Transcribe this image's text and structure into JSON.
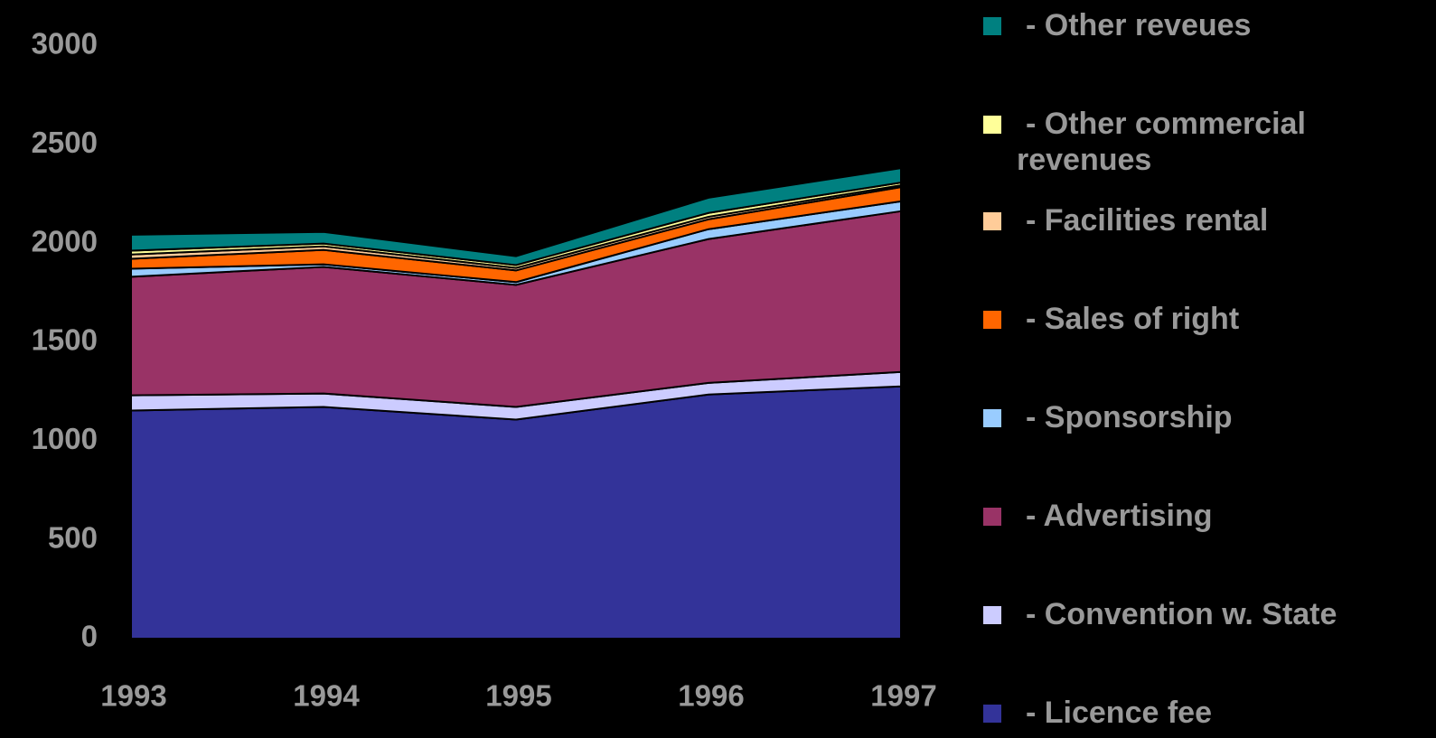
{
  "chart_data": {
    "type": "stacked-area",
    "categories": [
      "1993",
      "1994",
      "1995",
      "1996",
      "1997"
    ],
    "series": [
      {
        "name": "- Licence fee",
        "color": "#333399",
        "values": [
          1155,
          1173,
          1109,
          1236,
          1277
        ]
      },
      {
        "name": "- Convention w. State",
        "color": "#ccccff",
        "values": [
          77,
          68,
          64,
          59,
          73
        ]
      },
      {
        "name": "- Advertising",
        "color": "#993366",
        "values": [
          600,
          641,
          618,
          728,
          814
        ]
      },
      {
        "name": "- Sponsorship",
        "color": "#99ccff",
        "values": [
          41,
          13,
          14,
          50,
          50
        ]
      },
      {
        "name": "- Sales of right",
        "color": "#ff6600",
        "values": [
          50,
          73,
          59,
          50,
          72
        ]
      },
      {
        "name": "- Facilities rental",
        "color": "#ffcc99",
        "values": [
          22,
          18,
          13,
          13,
          9
        ]
      },
      {
        "name": "- Other commercial revenues",
        "color": "#ffff99",
        "values": [
          19,
          14,
          14,
          19,
          14
        ]
      },
      {
        "name": "- Other reveues",
        "color": "#008080",
        "values": [
          81,
          59,
          45,
          77,
          73
        ]
      }
    ],
    "ylim": [
      0,
      3000
    ],
    "yticks": [
      0,
      500,
      1000,
      1500,
      2000,
      2500,
      3000
    ],
    "grid": false,
    "legend": "right"
  }
}
